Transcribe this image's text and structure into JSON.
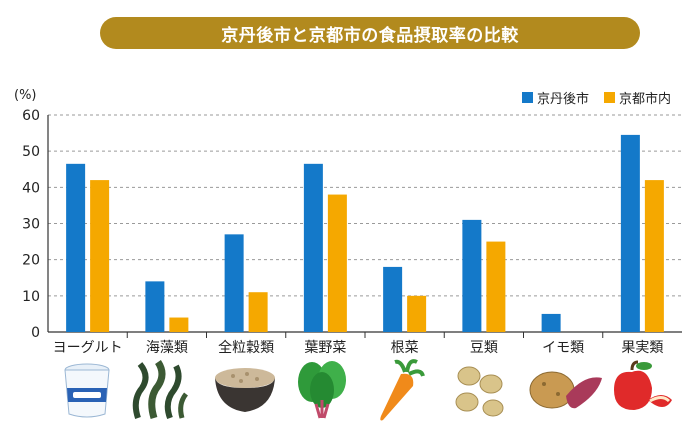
{
  "title": "京丹後市と京都市の食品摂取率の比較",
  "colors": {
    "title_bg": "#b28a1e",
    "series1": "#1479c9",
    "series2": "#f5a800",
    "grid": "#9a9a9a",
    "axis": "#333333"
  },
  "icons": [
    "yogurt-icon",
    "seaweed-icon",
    "grain-bowl-icon",
    "spinach-icon",
    "carrot-icon",
    "beans-icon",
    "potato-icon",
    "apple-icon"
  ],
  "chart_data": {
    "type": "bar",
    "ylabel": "(%)",
    "ylim": [
      0,
      60
    ],
    "yticks": [
      0,
      10,
      20,
      30,
      40,
      50,
      60
    ],
    "grid": true,
    "legend_position": "top-right",
    "categories": [
      "ヨーグルト",
      "海藻類",
      "全粒穀類",
      "葉野菜",
      "根菜",
      "豆類",
      "イモ類",
      "果実類"
    ],
    "series": [
      {
        "name": "京丹後市",
        "values": [
          46.5,
          14,
          27,
          46.5,
          18,
          31,
          5,
          54.5
        ]
      },
      {
        "name": "京都市内",
        "values": [
          42,
          4,
          11,
          38,
          10,
          25,
          0,
          42
        ]
      }
    ]
  }
}
